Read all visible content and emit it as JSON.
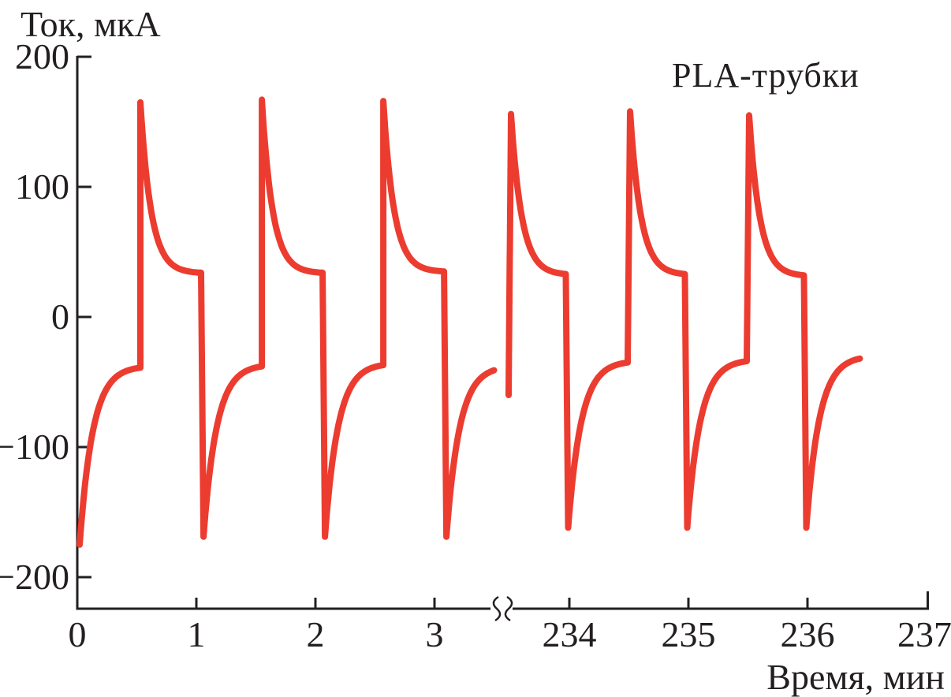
{
  "figure": {
    "ylabel": "Ток, мкА",
    "xlabel": "Время, мин",
    "annotation": "PLA-трубки"
  },
  "chart_data": {
    "type": "line",
    "title": "PLA-трубки",
    "xlabel": "Время, мин",
    "ylabel": "Ток, мкА",
    "axis_color": "#231f20",
    "x_axis": {
      "broken": true,
      "segments": [
        {
          "ticks": [
            0,
            1,
            2,
            3
          ],
          "tick_labels": [
            "0",
            "1",
            "2",
            "3"
          ],
          "domain": [
            0,
            3.5
          ]
        },
        {
          "ticks": [
            234,
            235,
            236,
            237
          ],
          "tick_labels": [
            "234",
            "235",
            "236",
            "237"
          ],
          "domain": [
            233.49,
            237
          ]
        }
      ]
    },
    "y_axis": {
      "ticks": [
        200,
        100,
        0,
        -100,
        -200
      ],
      "tick_labels": [
        "200",
        "100",
        "0",
        "−100",
        "−200"
      ],
      "range": [
        -224,
        200
      ]
    },
    "waveform_summary": {
      "initial_current_uA": -175,
      "spike_peak_uA": 165,
      "post_spike_plateau_uA": 34,
      "drop_trough_uA": -170,
      "pre_spike_plateau_uA": -38,
      "switch_interval_min": 0.5
    },
    "series": [
      {
        "name": "PLA-трубки",
        "color": "#EC3C30",
        "stroke_width": 8,
        "pieces": [
          {
            "kind": "rise",
            "t0": 0.02,
            "t1": 0.53,
            "from": -175,
            "to": -39,
            "tau": 0.11
          },
          {
            "kind": "decay",
            "t0": 0.53,
            "t1": 1.04,
            "from": 165,
            "to": 34,
            "tau": 0.09
          },
          {
            "kind": "rise",
            "t0": 1.06,
            "t1": 1.55,
            "from": -169,
            "to": -38,
            "tau": 0.11
          },
          {
            "kind": "decay",
            "t0": 1.55,
            "t1": 2.06,
            "from": 167,
            "to": 34,
            "tau": 0.09
          },
          {
            "kind": "rise",
            "t0": 2.08,
            "t1": 2.57,
            "from": -169,
            "to": -37,
            "tau": 0.11
          },
          {
            "kind": "decay",
            "t0": 2.57,
            "t1": 3.08,
            "from": 166,
            "to": 35,
            "tau": 0.09
          },
          {
            "kind": "rise",
            "t0": 3.1,
            "t1": 3.5,
            "from": -169,
            "to": -41,
            "tau": 0.11
          },
          {
            "kind": "line",
            "t0": 233.49,
            "t1": 233.51,
            "from": -60,
            "to": 156
          },
          {
            "kind": "decay",
            "t0": 233.51,
            "t1": 233.97,
            "from": 156,
            "to": 33,
            "tau": 0.09
          },
          {
            "kind": "rise",
            "t0": 233.99,
            "t1": 234.49,
            "from": -162,
            "to": -35,
            "tau": 0.11
          },
          {
            "kind": "decay",
            "t0": 234.51,
            "t1": 234.97,
            "from": 158,
            "to": 33,
            "tau": 0.09
          },
          {
            "kind": "rise",
            "t0": 234.99,
            "t1": 235.49,
            "from": -162,
            "to": -34,
            "tau": 0.11
          },
          {
            "kind": "decay",
            "t0": 235.51,
            "t1": 235.97,
            "from": 155,
            "to": 32,
            "tau": 0.09
          },
          {
            "kind": "rise",
            "t0": 235.99,
            "t1": 236.44,
            "from": -162,
            "to": -32,
            "tau": 0.11
          }
        ]
      }
    ]
  }
}
